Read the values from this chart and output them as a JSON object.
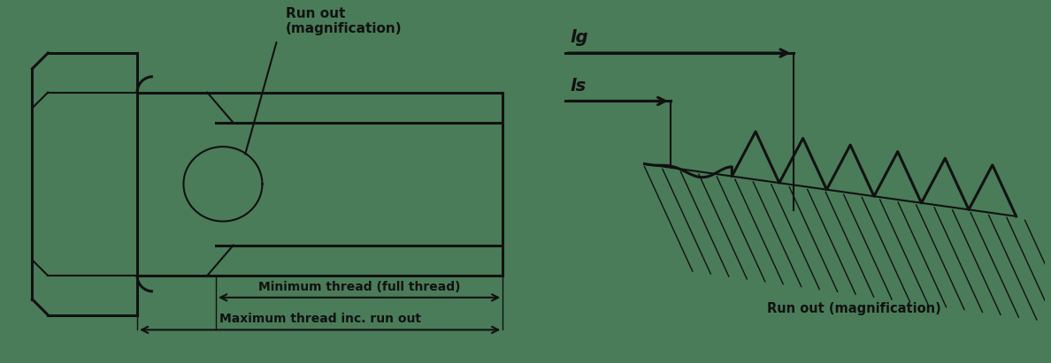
{
  "bg_color": "#4a7c59",
  "line_color": "#111111",
  "text_color": "#111111",
  "label_runout_left": "Run out\n(magnification)",
  "label_min_thread": "Minimum thread (full thread)",
  "label_max_thread": "Maximum thread inc. run out",
  "label_lg": "lg",
  "label_ls": "ls",
  "label_runout_right": "Run out (magnification)"
}
